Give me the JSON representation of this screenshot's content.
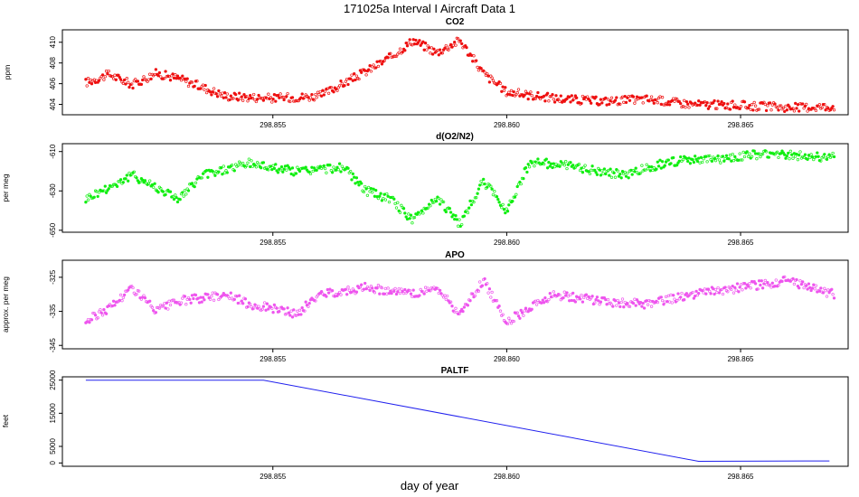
{
  "title": "171025a   Interval I Aircraft Data 1",
  "xlabel": "day of year",
  "chart_data": [
    {
      "type": "scatter",
      "title": "CO2",
      "ylabel": "ppm",
      "color": "#ee1111",
      "xlim": [
        298.8505,
        298.8673
      ],
      "ylim": [
        403.0,
        411.2
      ],
      "xticks": [
        "298.855",
        "298.860",
        "298.865"
      ],
      "yticks": [
        "404",
        "406",
        "408",
        "410"
      ],
      "x": [
        298.851,
        298.8515,
        298.852,
        298.8525,
        298.853,
        298.854,
        298.855,
        298.856,
        298.857,
        298.8575,
        298.858,
        298.8585,
        298.859,
        298.8595,
        298.86,
        298.861,
        298.862,
        298.863,
        298.864,
        298.865,
        298.866,
        298.867
      ],
      "y": [
        406.1,
        406.9,
        405.9,
        407.0,
        406.5,
        404.8,
        404.6,
        404.8,
        407.2,
        408.5,
        410.2,
        409.0,
        410.2,
        407.0,
        405.2,
        404.6,
        404.3,
        404.5,
        404.0,
        403.9,
        403.7,
        403.8
      ]
    },
    {
      "type": "scatter",
      "title": "d(O2/N2)",
      "ylabel": "per meg",
      "color": "#11ee11",
      "xlim": [
        298.8505,
        298.8673
      ],
      "ylim": [
        -651,
        -606
      ],
      "xticks": [
        "298.855",
        "298.860",
        "298.865"
      ],
      "yticks": [
        "-650",
        "-630",
        "-610"
      ],
      "x": [
        298.851,
        298.852,
        298.8525,
        298.853,
        298.8535,
        298.8545,
        298.8555,
        298.8565,
        298.857,
        298.8575,
        298.858,
        298.8585,
        298.859,
        298.8595,
        298.86,
        298.8605,
        298.8615,
        298.8625,
        298.8635,
        298.8645,
        298.8655,
        298.867
      ],
      "y": [
        -634,
        -622,
        -628,
        -634,
        -622,
        -616,
        -620,
        -618,
        -630,
        -634,
        -645,
        -633,
        -647,
        -625,
        -640,
        -615,
        -618,
        -622,
        -615,
        -614,
        -611,
        -613
      ]
    },
    {
      "type": "scatter",
      "title": "APO",
      "ylabel": "approx. per meg",
      "color": "#ee55ee",
      "xlim": [
        298.8505,
        298.8673
      ],
      "ylim": [
        -346,
        -320
      ],
      "xticks": [
        "298.855",
        "298.860",
        "298.865"
      ],
      "yticks": [
        "-345",
        "-335",
        "-325"
      ],
      "x": [
        298.851,
        298.8515,
        298.852,
        298.8525,
        298.853,
        298.854,
        298.8545,
        298.855,
        298.8555,
        298.856,
        298.857,
        298.858,
        298.8585,
        298.859,
        298.8595,
        298.86,
        298.861,
        298.862,
        298.863,
        298.864,
        298.865,
        298.866,
        298.867
      ],
      "y": [
        -338,
        -334,
        -328,
        -335,
        -332,
        -330,
        -333,
        -334,
        -336,
        -330,
        -328,
        -330,
        -328,
        -336,
        -326,
        -338,
        -330,
        -332,
        -333,
        -330,
        -328,
        -326,
        -330
      ]
    },
    {
      "type": "line",
      "title": "PALTF",
      "ylabel": "feet",
      "color": "#2020ee",
      "xlim": [
        298.8505,
        298.8673
      ],
      "ylim": [
        -1000,
        26000
      ],
      "xticks": [
        "298.855",
        "298.860",
        "298.865"
      ],
      "yticks": [
        "0",
        "5000",
        "15000",
        "25000"
      ],
      "x": [
        298.851,
        298.8548,
        298.8641,
        298.8669
      ],
      "y": [
        25000,
        25000,
        500,
        600
      ]
    }
  ]
}
